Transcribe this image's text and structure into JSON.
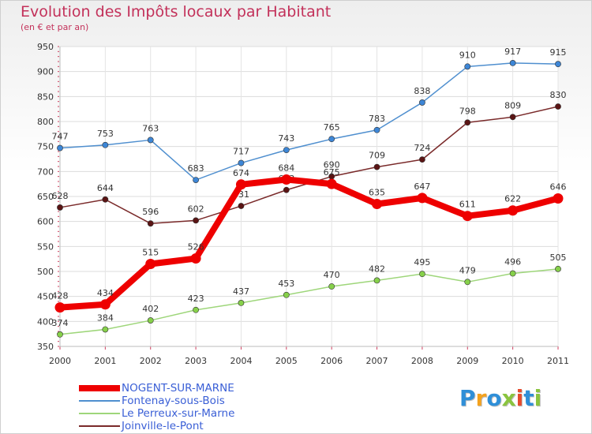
{
  "header": {
    "title": "Evolution des Impôts locaux par Habitant",
    "subtitle": "(en € et par an)"
  },
  "logo": {
    "letters": [
      "P",
      "r",
      "o",
      "x",
      "i",
      "t",
      "i"
    ],
    "colors": [
      "#2f8fd8",
      "#f4a21e",
      "#2f8fd8",
      "#8ac43f",
      "#e64b2e",
      "#2f8fd8",
      "#8ac43f"
    ]
  },
  "chart_data": {
    "type": "line",
    "title": "Evolution des Impôts locaux par Habitant",
    "subtitle": "(en € et par an)",
    "xlabel": "",
    "ylabel": "",
    "x": [
      "2000",
      "2001",
      "2002",
      "2003",
      "2004",
      "2005",
      "2006",
      "2007",
      "2008",
      "2009",
      "2010",
      "2011"
    ],
    "ylim": [
      350,
      950
    ],
    "yticks": [
      350,
      400,
      450,
      500,
      550,
      600,
      650,
      700,
      750,
      800,
      850,
      900,
      950
    ],
    "ytick_labels": [
      "350",
      "400",
      "450",
      "500",
      "550",
      "600",
      "650",
      "700",
      "750",
      "800",
      "850",
      "900",
      "950"
    ],
    "grid": true,
    "legend_position": "bottom-left",
    "series": [
      {
        "name": "Fontenay-sous-Bois",
        "color": "#4f8fcf",
        "marker": "#3d86d6",
        "emphasis": false,
        "values": [
          747,
          753,
          763,
          683,
          717,
          743,
          765,
          783,
          838,
          910,
          917,
          915
        ],
        "labels": [
          "747",
          "753",
          "763",
          "683",
          "717",
          "743",
          "765",
          "783",
          "838",
          "910",
          "917",
          "915"
        ]
      },
      {
        "name": "Joinville-le-Pont",
        "color": "#7a2a2a",
        "marker": "#5a1414",
        "emphasis": false,
        "values": [
          628,
          644,
          596,
          602,
          631,
          663,
          690,
          709,
          724,
          798,
          809,
          830
        ],
        "labels": [
          "628",
          "644",
          "596",
          "602",
          "631",
          "663",
          "690",
          "709",
          "724",
          "798",
          "809",
          "830"
        ]
      },
      {
        "name": "Le Perreux-sur-Marne",
        "color": "#9ed67a",
        "marker": "#86d04a",
        "emphasis": false,
        "values": [
          374,
          384,
          402,
          423,
          437,
          453,
          470,
          482,
          495,
          479,
          496,
          505
        ],
        "labels": [
          "374",
          "384",
          "402",
          "423",
          "437",
          "453",
          "470",
          "482",
          "495",
          "479",
          "496",
          "505"
        ]
      },
      {
        "name": "NOGENT-SUR-MARNE",
        "color": "#ee0000",
        "marker": "#ee0000",
        "emphasis": true,
        "values": [
          428,
          434,
          515,
          526,
          674,
          684,
          675,
          635,
          647,
          611,
          622,
          646
        ],
        "labels": [
          "428",
          "434",
          "515",
          "526",
          "674",
          "684",
          "675",
          "635",
          "647",
          "611",
          "622",
          "646"
        ]
      }
    ],
    "legend": [
      {
        "name": "NOGENT-SUR-MARNE",
        "color": "#ee0000",
        "width": 8
      },
      {
        "name": "Fontenay-sous-Bois",
        "color": "#4f8fcf",
        "width": 1.5
      },
      {
        "name": "Le Perreux-sur-Marne",
        "color": "#9ed67a",
        "width": 1.5
      },
      {
        "name": "Joinville-le-Pont",
        "color": "#7a2a2a",
        "width": 1.5
      }
    ]
  }
}
